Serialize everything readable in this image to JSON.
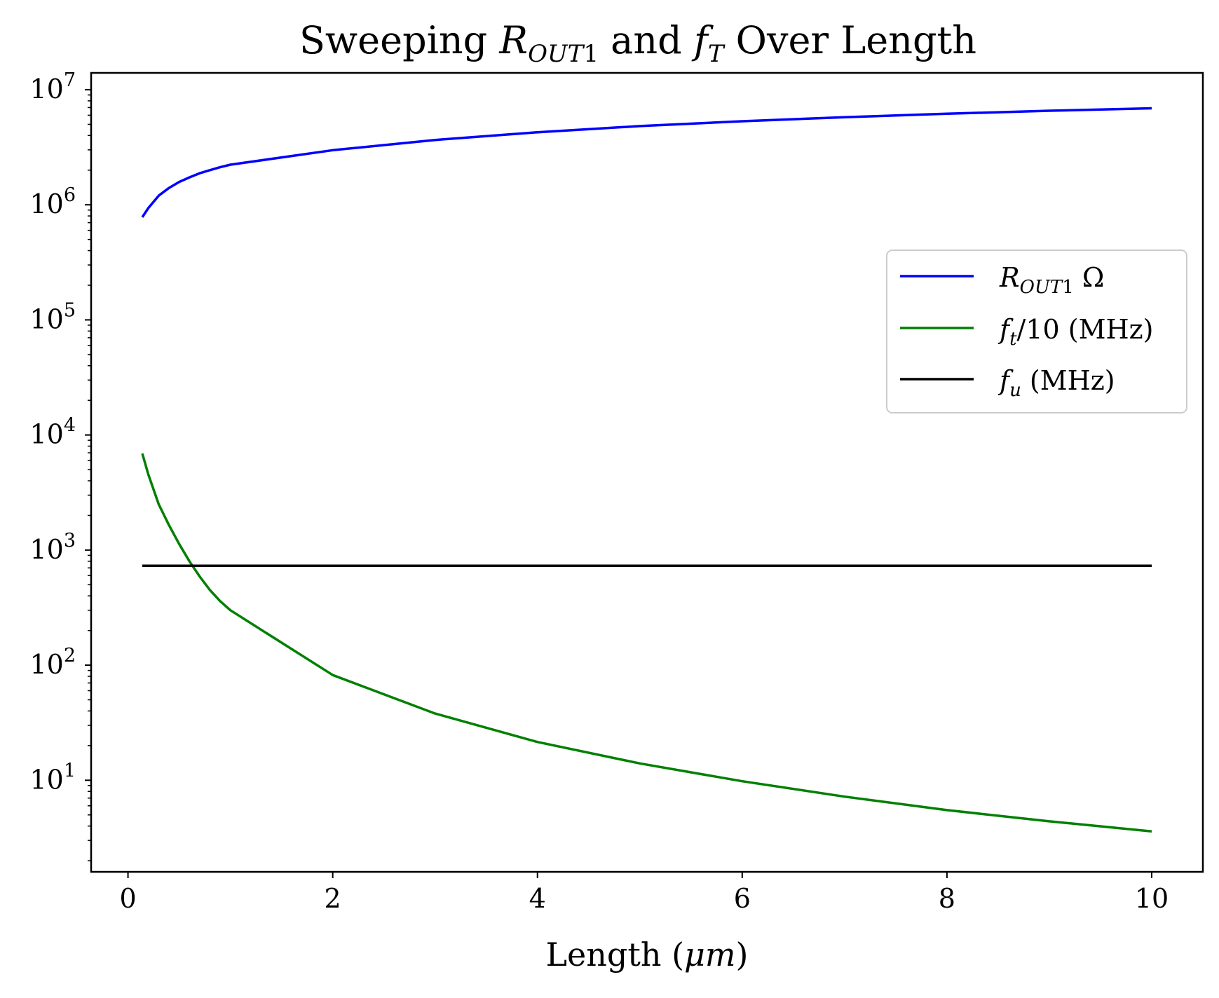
{
  "chart_data": {
    "type": "line",
    "title": "Sweeping R_OUT1 and f_T Over Length",
    "xlabel": "Length (μm)",
    "ylabel": "",
    "xlim": [
      -0.36,
      10.5
    ],
    "ylim": [
      1.6,
      14000000
    ],
    "yscale": "log",
    "grid": false,
    "legend_position": "center-right",
    "x_ticks": [
      0,
      2,
      4,
      6,
      8,
      10
    ],
    "x_tick_labels": [
      "0",
      "2",
      "4",
      "6",
      "8",
      "10"
    ],
    "y_ticks": [
      10,
      100,
      1000,
      10000,
      100000,
      1000000,
      10000000
    ],
    "y_tick_base": "10",
    "y_tick_exponents": [
      "1",
      "2",
      "3",
      "4",
      "5",
      "6",
      "7"
    ],
    "series": [
      {
        "name": "R_OUT1 Ω",
        "color": "#0000ff",
        "x": [
          0.14,
          0.2,
          0.3,
          0.4,
          0.5,
          0.6,
          0.7,
          0.8,
          0.9,
          1,
          2,
          3,
          4,
          5,
          6,
          7,
          8,
          9,
          10
        ],
        "y": [
          780000,
          940000,
          1200000,
          1400000,
          1580000,
          1730000,
          1880000,
          2000000,
          2120000,
          2230000,
          2980000,
          3660000,
          4270000,
          4830000,
          5320000,
          5770000,
          6180000,
          6570000,
          6900000
        ]
      },
      {
        "name": "f_t/10 (MHz)",
        "color": "#008000",
        "x": [
          0.14,
          0.2,
          0.3,
          0.4,
          0.5,
          0.6,
          0.7,
          0.8,
          0.9,
          1,
          2,
          3,
          4,
          5,
          6,
          7,
          8,
          9,
          10
        ],
        "y": [
          6900,
          4500,
          2500,
          1650,
          1130,
          800,
          590,
          450,
          360,
          300,
          82,
          38,
          21.5,
          14,
          9.8,
          7.2,
          5.5,
          4.4,
          3.6
        ]
      },
      {
        "name": "f_u (MHz)",
        "color": "#000000",
        "x": [
          0.14,
          10
        ],
        "y": [
          730,
          730
        ]
      }
    ]
  }
}
